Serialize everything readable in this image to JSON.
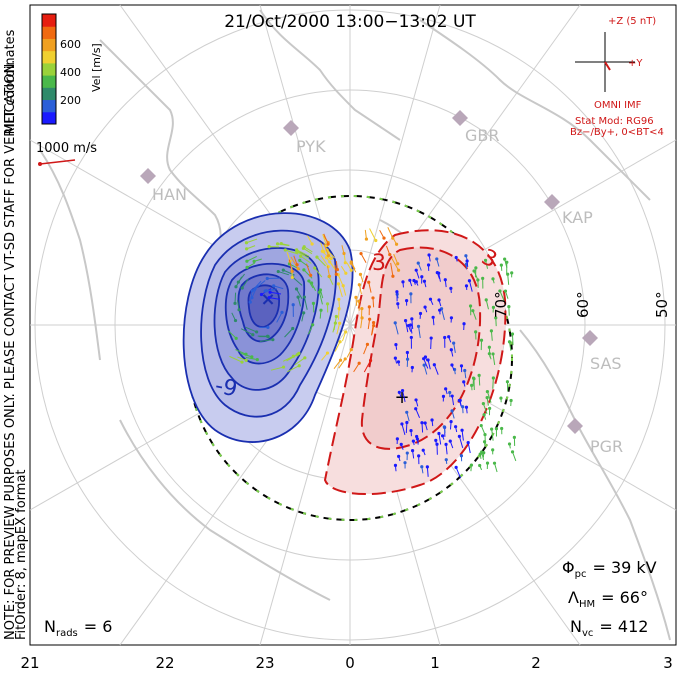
{
  "title": "21/Oct/2000 13:00−13:02 UT",
  "colorbar": {
    "label": "Vel [m/s]",
    "ticks": [
      "600",
      "400",
      "200"
    ],
    "colors": [
      "#1a1aff",
      "#2b5fd8",
      "#2f8a6a",
      "#4ab84a",
      "#9ad23a",
      "#f0d030",
      "#f0a020",
      "#f06a10",
      "#e61e10"
    ]
  },
  "side_labels": {
    "coords": "MLT coordinates",
    "note": "NOTE: FOR PREVIEW PURPOSES ONLY. PLEASE CONTACT VT-SD STAFF FOR VERIFICATION.",
    "fit": "FitOrder: 8, mapEX format"
  },
  "scale": {
    "text": "1000 m/s"
  },
  "imf": {
    "z_label": "+Z (5 nT)",
    "y_label": "+Y",
    "source": "OMNI IMF",
    "model": "Stat Mod: RG96",
    "condition": "Bz−/By+, 0<BT<4"
  },
  "stations": [
    "PYK",
    "GBR",
    "HAN",
    "KAP",
    "SAS",
    "PGR"
  ],
  "lat_labels": [
    "70°",
    "60°",
    "50°"
  ],
  "contour_labels": {
    "neg": "-9",
    "pos": "3"
  },
  "stats": {
    "phi_sym": "Φ",
    "phi_sub": "pc",
    "phi_val": "= 39 kV",
    "lam_sym": "Λ",
    "lam_sub": "HM",
    "lam_val": "= 66°",
    "nvc_sym": "N",
    "nvc_sub": "vc",
    "nvc_val": "= 412",
    "nrads_sym": "N",
    "nrads_sub": "rads",
    "nrads_val": "= 6"
  },
  "mlt_axis": [
    "21",
    "22",
    "23",
    "0",
    "1",
    "2",
    "3"
  ],
  "colors": {
    "neg": "#1a2fb0",
    "pos": "#d01818",
    "boundary": "#000000",
    "map": "#c8c8c8"
  }
}
